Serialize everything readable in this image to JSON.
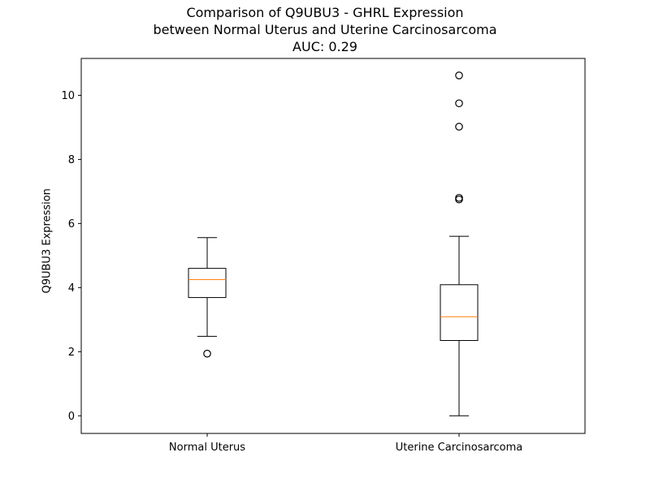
{
  "chart_data": {
    "type": "boxplot",
    "title_lines": [
      "Comparison of Q9UBU3 - GHRL Expression",
      "between Normal Uterus and Uterine Carcinosarcoma",
      "AUC: 0.29"
    ],
    "xlabel": "",
    "ylabel": "Q9UBU3 Expression",
    "ylim": [
      -0.55,
      11.15
    ],
    "yticks": [
      0,
      2,
      4,
      6,
      8,
      10
    ],
    "ytick_labels": [
      "0",
      "2",
      "4",
      "6",
      "8",
      "10"
    ],
    "categories": [
      "Normal Uterus",
      "Uterine Carcinosarcoma"
    ],
    "boxes": [
      {
        "category": "Normal Uterus",
        "whisker_low": 2.48,
        "q1": 3.69,
        "median": 4.25,
        "q3": 4.6,
        "whisker_high": 5.56,
        "outliers": [
          1.94
        ]
      },
      {
        "category": "Uterine Carcinosarcoma",
        "whisker_low": 0.0,
        "q1": 2.35,
        "median": 3.09,
        "q3": 4.09,
        "whisker_high": 5.6,
        "outliers": [
          6.75,
          6.8,
          9.02,
          9.75,
          10.62
        ]
      }
    ],
    "colors": {
      "box": "#000000",
      "median": "#ff7f0e",
      "outlier": "#000000"
    },
    "grid": false
  }
}
